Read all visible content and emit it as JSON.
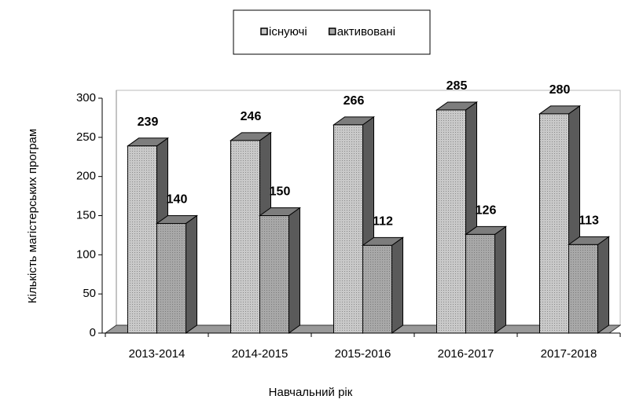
{
  "chart_data": {
    "type": "bar3d",
    "categories": [
      "2013-2014",
      "2014-2015",
      "2015-2016",
      "2016-2017",
      "2017-2018"
    ],
    "series": [
      {
        "name": "існуючі",
        "color": "#c9c9c9",
        "values": [
          239,
          246,
          266,
          285,
          280
        ]
      },
      {
        "name": "активовані",
        "color": "#a8a8a8",
        "values": [
          140,
          150,
          112,
          126,
          113
        ]
      }
    ],
    "xlabel": "Навчальний рік",
    "ylabel": "Кількість магістерських програм",
    "ylim": [
      0,
      300
    ],
    "yticks": [
      0,
      50,
      100,
      150,
      200,
      250,
      300
    ],
    "legend": "top"
  }
}
